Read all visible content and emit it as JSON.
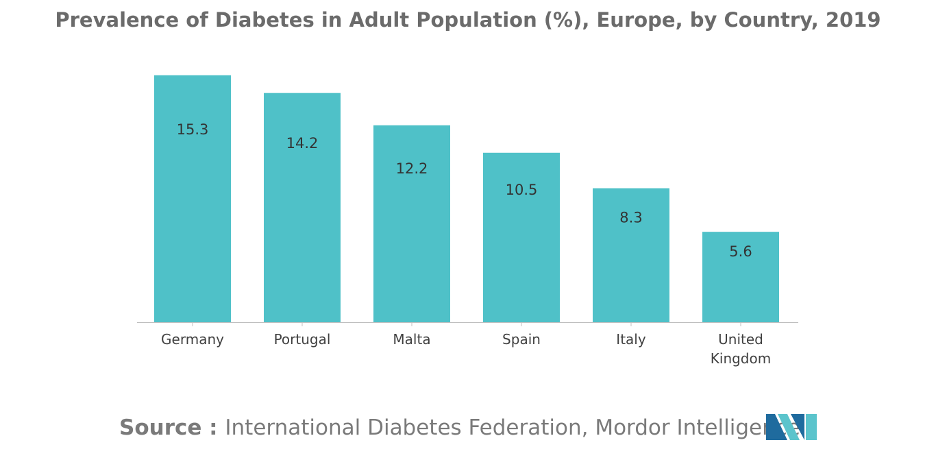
{
  "colors": {
    "bar": "#4fc1c8",
    "axis": "#bfbfbf",
    "logo_dark": "#1f6b9e",
    "logo_light": "#5bc4cc"
  },
  "chart_data": {
    "type": "bar",
    "title": "Prevalence of Diabetes in Adult Population (%), Europe, by Country, 2019",
    "xlabel": "",
    "ylabel": "",
    "categories": [
      [
        "Germany"
      ],
      [
        "Portugal"
      ],
      [
        "Malta"
      ],
      [
        "Spain"
      ],
      [
        "Italy"
      ],
      [
        "United",
        "Kingdom"
      ]
    ],
    "values": [
      15.3,
      14.2,
      12.2,
      10.5,
      8.3,
      5.6
    ],
    "value_labels": [
      "15.3",
      "14.2",
      "12.2",
      "10.5",
      "8.3",
      "5.6"
    ],
    "ylim": [
      0,
      17.5
    ],
    "grid": false,
    "legend": "none"
  },
  "source": {
    "prefix": "Source : ",
    "text": "International Diabetes Federation, Mordor Intelligence"
  },
  "logo": {
    "icon": "mordor-intelligence-logo-icon"
  }
}
